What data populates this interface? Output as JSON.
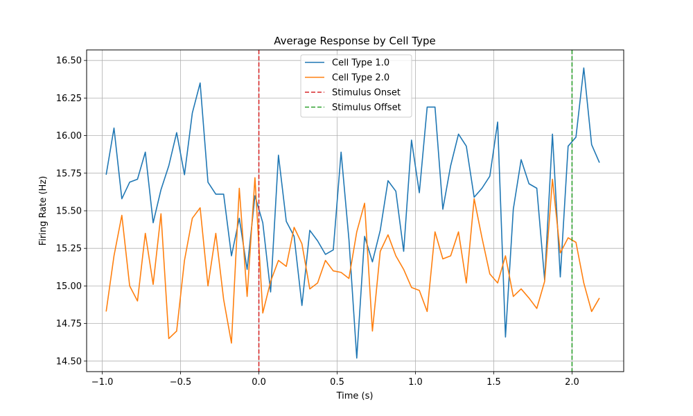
{
  "chart_data": {
    "type": "line",
    "title": "Average Response by Cell Type",
    "xlabel": "Time (s)",
    "ylabel": "Firing Rate (Hz)",
    "xlim": [
      -1.1,
      2.33
    ],
    "ylim": [
      14.43,
      16.57
    ],
    "xticks": [
      -1.0,
      -0.5,
      0.0,
      0.5,
      1.0,
      1.5,
      2.0
    ],
    "xtick_labels": [
      "−1.0",
      "−0.5",
      "0.0",
      "0.5",
      "1.0",
      "1.5",
      "2.0"
    ],
    "yticks": [
      14.5,
      14.75,
      15.0,
      15.25,
      15.5,
      15.75,
      16.0,
      16.25,
      16.5
    ],
    "ytick_labels": [
      "14.50",
      "14.75",
      "15.00",
      "15.25",
      "15.50",
      "15.75",
      "16.00",
      "16.25",
      "16.50"
    ],
    "grid": true,
    "legend_position": "top-center",
    "x": [
      -0.975,
      -0.925,
      -0.875,
      -0.825,
      -0.775,
      -0.725,
      -0.675,
      -0.625,
      -0.575,
      -0.525,
      -0.475,
      -0.425,
      -0.375,
      -0.325,
      -0.275,
      -0.225,
      -0.175,
      -0.125,
      -0.075,
      -0.025,
      0.025,
      0.075,
      0.125,
      0.175,
      0.225,
      0.275,
      0.325,
      0.375,
      0.425,
      0.475,
      0.525,
      0.575,
      0.625,
      0.675,
      0.725,
      0.775,
      0.825,
      0.875,
      0.925,
      0.975,
      1.025,
      1.075,
      1.125,
      1.175,
      1.225,
      1.275,
      1.325,
      1.375,
      1.425,
      1.475,
      1.525,
      1.575,
      1.625,
      1.675,
      1.725,
      1.775,
      1.825,
      1.875,
      1.925,
      1.975,
      2.025,
      2.075,
      2.125,
      2.175
    ],
    "series": [
      {
        "name": "Cell Type 1.0",
        "color": "#1f77b4",
        "style": "solid",
        "values": [
          15.74,
          16.05,
          15.58,
          15.69,
          15.71,
          15.89,
          15.42,
          15.64,
          15.8,
          16.02,
          15.74,
          16.15,
          16.35,
          15.69,
          15.61,
          15.61,
          15.2,
          15.45,
          15.11,
          15.6,
          15.42,
          14.96,
          15.87,
          15.43,
          15.33,
          14.87,
          15.37,
          15.3,
          15.21,
          15.24,
          15.89,
          15.31,
          14.52,
          15.33,
          15.16,
          15.37,
          15.7,
          15.63,
          15.23,
          15.97,
          15.62,
          16.19,
          16.19,
          15.51,
          15.8,
          16.01,
          15.93,
          15.59,
          15.65,
          15.73,
          16.09,
          14.66,
          15.51,
          15.84,
          15.68,
          15.65,
          15.04,
          16.01,
          15.06,
          15.93,
          15.99,
          16.45,
          15.94,
          15.82
        ]
      },
      {
        "name": "Cell Type 2.0",
        "color": "#ff7f0e",
        "style": "solid",
        "values": [
          14.83,
          15.2,
          15.47,
          15.0,
          14.9,
          15.35,
          15.01,
          15.48,
          14.65,
          14.7,
          15.17,
          15.45,
          15.52,
          15.0,
          15.35,
          14.91,
          14.62,
          15.65,
          14.93,
          15.72,
          14.82,
          15.03,
          15.17,
          15.13,
          15.39,
          15.28,
          14.98,
          15.02,
          15.17,
          15.1,
          15.09,
          15.05,
          15.36,
          15.55,
          14.7,
          15.23,
          15.34,
          15.2,
          15.11,
          14.99,
          14.97,
          14.83,
          15.36,
          15.18,
          15.2,
          15.36,
          15.02,
          15.58,
          15.32,
          15.08,
          15.02,
          15.2,
          14.93,
          14.98,
          14.92,
          14.85,
          15.03,
          15.71,
          15.22,
          15.32,
          15.29,
          15.02,
          14.83,
          14.92
        ]
      }
    ],
    "vlines": [
      {
        "name": "Stimulus Onset",
        "x": 0.0,
        "color": "#d62728",
        "style": "dashed"
      },
      {
        "name": "Stimulus Offset",
        "x": 2.0,
        "color": "#2ca02c",
        "style": "dashed"
      }
    ],
    "legend": [
      "Cell Type 1.0",
      "Cell Type 2.0",
      "Stimulus Onset",
      "Stimulus Offset"
    ]
  }
}
